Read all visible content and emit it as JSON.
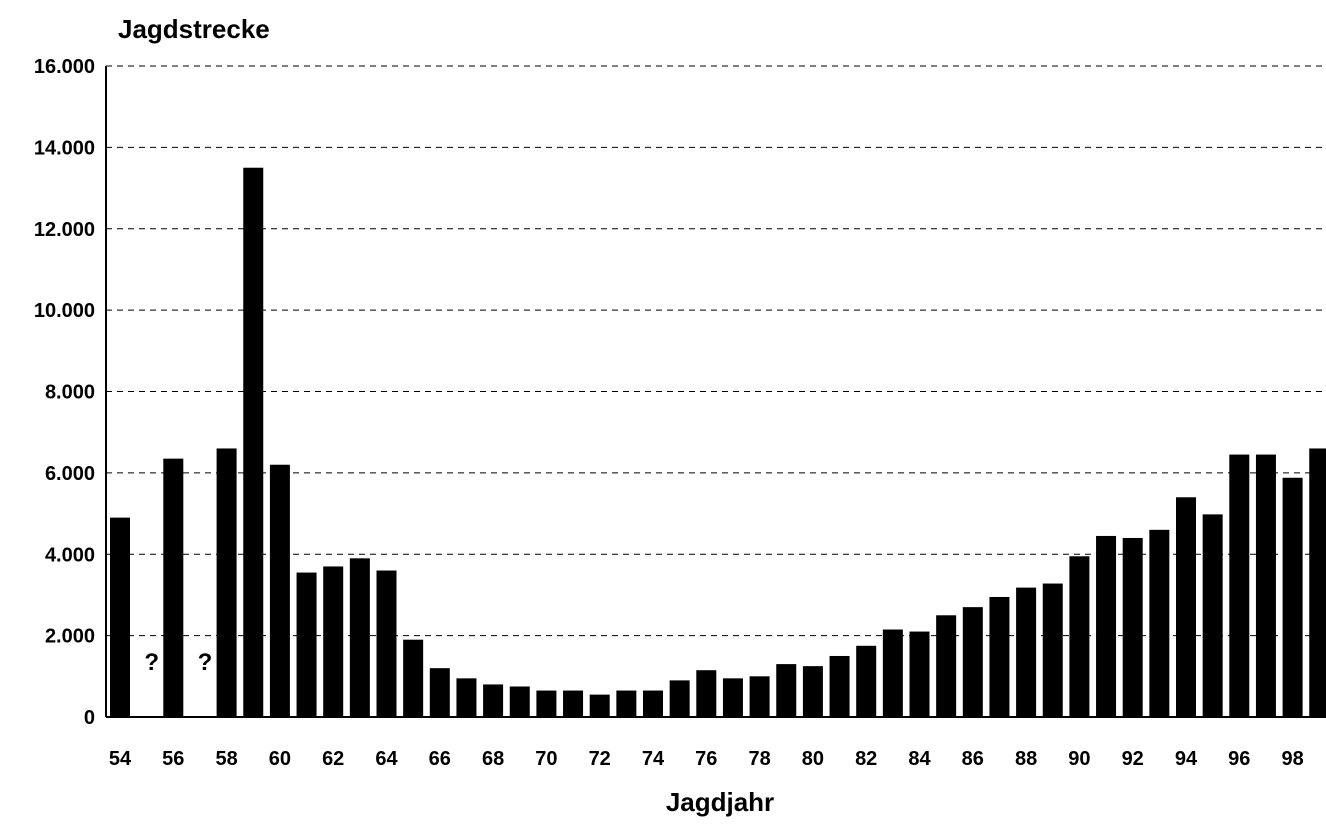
{
  "chart_data": {
    "type": "bar",
    "ylabel": "Jagdstrecke",
    "xlabel": "Jagdjahr",
    "ylim": [
      0,
      16000
    ],
    "y_ticks": [
      0,
      2000,
      4000,
      6000,
      8000,
      10000,
      12000,
      14000,
      16000
    ],
    "y_tick_labels": [
      "0",
      "2.000",
      "4.000",
      "6.000",
      "8.000",
      "10.000",
      "12.000",
      "14.000",
      "16.000"
    ],
    "grid": true,
    "categories": [
      "54",
      "55",
      "56",
      "57",
      "58",
      "59",
      "60",
      "61",
      "62",
      "63",
      "64",
      "65",
      "66",
      "67",
      "68",
      "69",
      "70",
      "71",
      "72",
      "73",
      "74",
      "75",
      "76",
      "77",
      "78",
      "79",
      "80",
      "81",
      "82",
      "83",
      "84",
      "85",
      "86",
      "87",
      "88",
      "89",
      "90",
      "91",
      "92",
      "93",
      "94",
      "95",
      "96",
      "97",
      "98",
      "99"
    ],
    "x_tick_labels": [
      "54",
      "56",
      "58",
      "60",
      "62",
      "64",
      "66",
      "68",
      "70",
      "72",
      "74",
      "76",
      "78",
      "80",
      "82",
      "84",
      "86",
      "88",
      "90",
      "92",
      "94",
      "96",
      "98"
    ],
    "values": [
      4900,
      null,
      6350,
      null,
      6600,
      13500,
      6200,
      3550,
      3700,
      3900,
      3600,
      1900,
      1200,
      950,
      800,
      750,
      650,
      650,
      550,
      650,
      650,
      900,
      1150,
      950,
      1000,
      1300,
      1250,
      1500,
      1750,
      2150,
      2100,
      2500,
      2700,
      2950,
      3180,
      3280,
      3950,
      4450,
      4400,
      4600,
      5400,
      4980,
      6450,
      6450,
      5880,
      6600
    ],
    "annotations": [
      {
        "category": "55",
        "text": "?"
      },
      {
        "category": "57",
        "text": "?"
      }
    ]
  }
}
